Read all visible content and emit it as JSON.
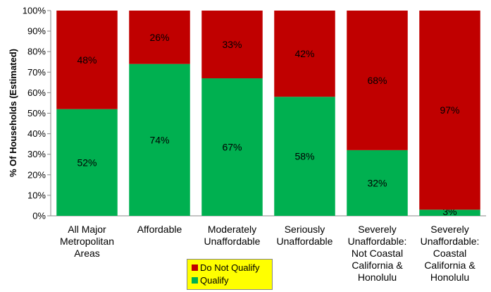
{
  "chart_data": {
    "type": "bar",
    "stacked": true,
    "categories": [
      [
        "All Major",
        "Metropolitan",
        "Areas"
      ],
      [
        "Affordable"
      ],
      [
        "Moderately",
        "Unaffordable"
      ],
      [
        "Seriously",
        "Unaffordable"
      ],
      [
        "Severely",
        "Unaffordable:",
        "Not Coastal",
        "California &",
        "Honolulu"
      ],
      [
        "Severely",
        "Unaffordable:",
        "Coastal",
        "California &",
        "Honolulu"
      ]
    ],
    "series": [
      {
        "name": "Qualify",
        "color": "#00b050",
        "values": [
          52,
          74,
          67,
          58,
          32,
          3
        ],
        "labels": [
          "52%",
          "74%",
          "67%",
          "58%",
          "32%",
          "3%"
        ]
      },
      {
        "name": "Do Not Qualify",
        "color": "#c00000",
        "values": [
          48,
          26,
          33,
          42,
          68,
          97
        ],
        "labels": [
          "48%",
          "26%",
          "33%",
          "42%",
          "68%",
          "97%"
        ]
      }
    ],
    "ylabel": "% Of Households (Estimated)",
    "ylim": [
      0,
      100
    ],
    "yticks": [
      "0%",
      "10%",
      "20%",
      "30%",
      "40%",
      "50%",
      "60%",
      "70%",
      "80%",
      "90%",
      "100%"
    ],
    "grid": false,
    "legend_position": "bottom-center"
  },
  "legend": {
    "items": [
      {
        "label": "Do Not Qualify",
        "color": "#c00000"
      },
      {
        "label": "Qualify",
        "color": "#00b050"
      }
    ]
  }
}
